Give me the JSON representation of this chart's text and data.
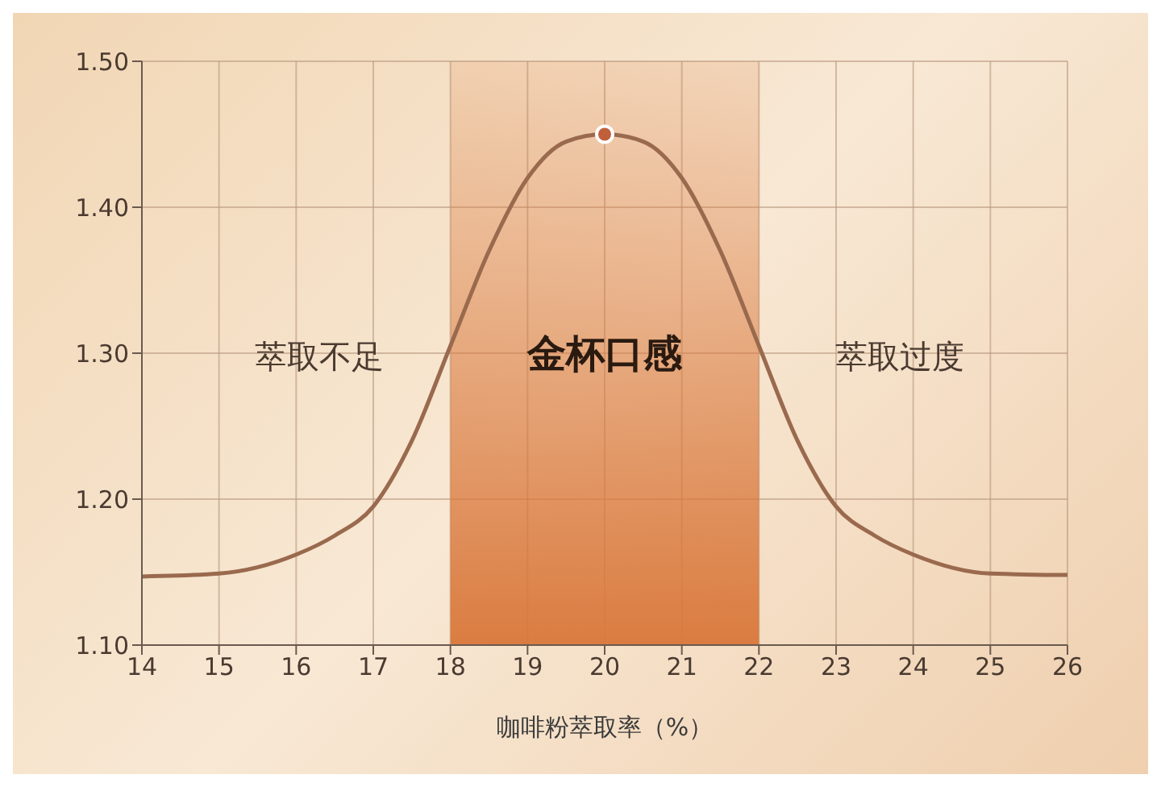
{
  "chart_data": {
    "type": "line",
    "xlabel": "咖啡粉萃取率（%）",
    "x": [
      14,
      15,
      16,
      16.5,
      17,
      17.5,
      18,
      18.5,
      19,
      19.5,
      20,
      20.5,
      21,
      21.5,
      22,
      22.5,
      23,
      23.5,
      24,
      25,
      26
    ],
    "series": [
      {
        "color": "#9a6a4e",
        "values": [
          1.147,
          1.149,
          1.162,
          1.175,
          1.195,
          1.24,
          1.305,
          1.37,
          1.42,
          1.445,
          1.45,
          1.445,
          1.42,
          1.37,
          1.305,
          1.24,
          1.195,
          1.175,
          1.162,
          1.149,
          1.148
        ]
      },
      {
        "type": "scatter",
        "color": "#c0603a",
        "x": [
          20
        ],
        "values": [
          1.45
        ],
        "marker": "circle"
      }
    ],
    "xlim": [
      14,
      26
    ],
    "xticks": [
      14,
      15,
      16,
      17,
      18,
      19,
      20,
      21,
      22,
      23,
      24,
      25,
      26
    ],
    "ylim": [
      1.1,
      1.5
    ],
    "yticks": [
      {
        "value": 1.1,
        "label": "1.10"
      },
      {
        "value": 1.2,
        "label": "1.20"
      },
      {
        "value": 1.3,
        "label": "1.30"
      },
      {
        "value": 1.4,
        "label": "1.40"
      },
      {
        "value": 1.5,
        "label": "1.50"
      }
    ],
    "grid": true,
    "marker": "none",
    "bands": [
      {
        "axis": "x",
        "from": 18,
        "to": 22,
        "label": "金杯口感",
        "color": "#d9773a"
      }
    ],
    "annotations": [
      "萃取不足",
      "萃取过度"
    ]
  }
}
